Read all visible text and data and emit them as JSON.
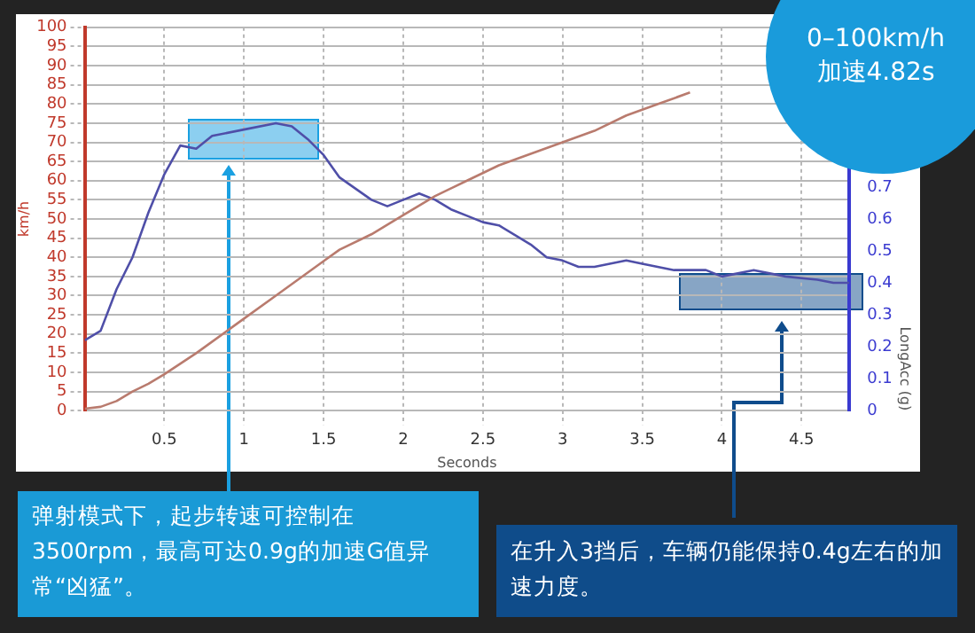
{
  "chart_data": {
    "type": "line",
    "xlabel": "Seconds",
    "ylabel": "km/h",
    "y2label": "LongAcc (g)",
    "xlim": [
      0,
      4.8
    ],
    "xticks": [
      0.5,
      1,
      1.5,
      2,
      2.5,
      3,
      3.5,
      4,
      4.5
    ],
    "ylim": [
      0,
      100
    ],
    "yticks": [
      0,
      5,
      10,
      15,
      20,
      25,
      30,
      35,
      40,
      45,
      50,
      55,
      60,
      65,
      70,
      75,
      80,
      85,
      90,
      95,
      100
    ],
    "y2lim": [
      0,
      1.2
    ],
    "y2ticks": [
      0,
      0.1,
      0.2,
      0.3,
      0.4,
      0.5,
      0.6,
      0.7
    ],
    "grid": true,
    "series": [
      {
        "color": "#b97b6e",
        "x": [
          0,
          0.1,
          0.2,
          0.3,
          0.4,
          0.5,
          0.7,
          0.9,
          1.0,
          1.2,
          1.4,
          1.5,
          1.6,
          1.8,
          2.0,
          2.2,
          2.4,
          2.6,
          2.8,
          3.0,
          3.2,
          3.4,
          3.6,
          3.8
        ],
        "values": [
          0.5,
          1,
          2.5,
          5,
          7,
          9.5,
          15,
          21,
          24,
          30,
          36,
          39,
          42,
          46,
          51,
          56,
          60,
          64,
          67,
          70,
          73,
          77,
          80,
          83
        ]
      },
      {
        "color": "#4f4fa8",
        "axis": "y2",
        "x": [
          0,
          0.1,
          0.2,
          0.3,
          0.4,
          0.5,
          0.6,
          0.7,
          0.8,
          1.0,
          1.2,
          1.3,
          1.4,
          1.5,
          1.6,
          1.8,
          1.9,
          2.0,
          2.1,
          2.2,
          2.3,
          2.4,
          2.5,
          2.6,
          2.8,
          2.9,
          3.0,
          3.1,
          3.2,
          3.4,
          3.5,
          3.7,
          3.9,
          4.0,
          4.2,
          4.4,
          4.6,
          4.7,
          4.8
        ],
        "values": [
          0.22,
          0.25,
          0.38,
          0.48,
          0.62,
          0.74,
          0.83,
          0.82,
          0.86,
          0.88,
          0.9,
          0.89,
          0.85,
          0.8,
          0.73,
          0.66,
          0.64,
          0.66,
          0.68,
          0.66,
          0.63,
          0.61,
          0.59,
          0.58,
          0.52,
          0.48,
          0.47,
          0.45,
          0.45,
          0.47,
          0.46,
          0.44,
          0.44,
          0.42,
          0.44,
          0.42,
          0.41,
          0.4,
          0.4
        ]
      }
    ],
    "annotations": [
      "0–100km/h",
      "加速4.82s",
      "弹射模式下，起步转速可控制在3500rpm，最高可达0.9g的加速G值异常“凶猛”。",
      "在升入3挡后，车辆仍能保持0.4g左右的加速力度。"
    ]
  }
}
